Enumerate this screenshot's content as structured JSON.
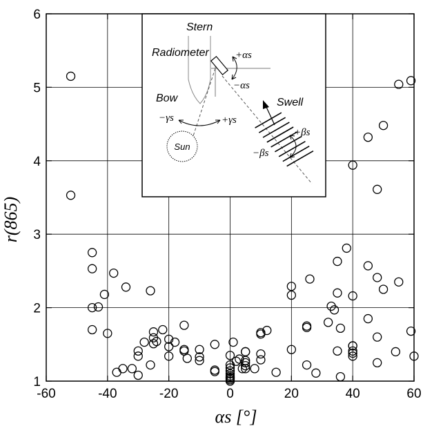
{
  "chart_data": {
    "type": "scatter",
    "xlabel": "αs [°]",
    "ylabel": "r(865)",
    "xlim": [
      -60,
      60
    ],
    "ylim": [
      1,
      6
    ],
    "xticks": [
      -60,
      -40,
      -20,
      0,
      20,
      40,
      60
    ],
    "yticks": [
      1,
      2,
      3,
      4,
      5,
      6
    ],
    "grid": true,
    "marker": "open-circle",
    "x": [
      -52,
      -52,
      -45,
      -45,
      -45,
      -45,
      -43,
      -41,
      -40,
      -38,
      -37,
      -35,
      -34,
      -32,
      -30,
      -30,
      -30,
      -28,
      -26,
      -26,
      -25,
      -25,
      -25,
      -24,
      -22,
      -20,
      -20,
      -20,
      -18,
      -15,
      -15,
      -15,
      -14,
      -10,
      -10,
      -10,
      -5,
      -5,
      -5,
      0,
      0,
      0,
      0,
      0,
      0,
      0,
      0,
      0,
      0,
      1,
      2,
      3,
      4,
      5,
      5,
      5,
      5,
      5,
      5,
      8,
      10,
      10,
      10,
      10,
      12,
      15,
      20,
      20,
      20,
      25,
      25,
      25,
      26,
      28,
      32,
      33,
      34,
      35,
      35,
      35,
      36,
      36,
      38,
      40,
      40,
      40,
      40,
      40,
      40,
      40,
      45,
      45,
      45,
      48,
      48,
      48,
      48,
      50,
      50,
      54,
      55,
      55,
      59,
      59,
      60
    ],
    "y": [
      5.15,
      3.53,
      2.75,
      2.53,
      2.0,
      1.7,
      2.01,
      2.18,
      1.65,
      2.47,
      1.12,
      1.17,
      2.28,
      1.17,
      1.08,
      1.34,
      1.41,
      1.53,
      2.23,
      1.22,
      1.51,
      1.59,
      1.67,
      1.54,
      1.7,
      1.34,
      1.47,
      1.57,
      1.53,
      1.76,
      1.43,
      1.41,
      1.31,
      1.43,
      1.33,
      1.28,
      1.5,
      1.15,
      1.13,
      1.35,
      1.22,
      1.18,
      1.14,
      1.1,
      1.07,
      1.05,
      1.04,
      1.02,
      1.0,
      1.53,
      1.27,
      1.3,
      1.17,
      1.4,
      1.4,
      1.28,
      1.25,
      1.21,
      1.17,
      1.17,
      1.64,
      1.66,
      1.37,
      1.29,
      1.69,
      1.12,
      2.29,
      2.17,
      1.43,
      1.75,
      1.73,
      1.22,
      2.39,
      1.11,
      1.8,
      2.02,
      1.97,
      2.63,
      2.2,
      1.41,
      1.06,
      1.72,
      2.81,
      3.94,
      2.16,
      1.48,
      1.41,
      1.38,
      1.34,
      1.48,
      4.32,
      2.57,
      1.85,
      3.61,
      2.41,
      1.6,
      1.25,
      4.48,
      2.25,
      1.4,
      5.04,
      2.35,
      5.09,
      1.68,
      1.34
    ]
  },
  "inset": {
    "labels": {
      "stern": "Stern",
      "radiometer": "Radiometer",
      "bow": "Bow",
      "swell": "Swell",
      "sun": "Sun",
      "plus_alpha": "+αs",
      "minus_alpha": "−αs",
      "minus_gamma": "−γs",
      "plus_gamma": "+γs",
      "plus_beta": "+βs",
      "minus_beta": "−βs"
    }
  }
}
